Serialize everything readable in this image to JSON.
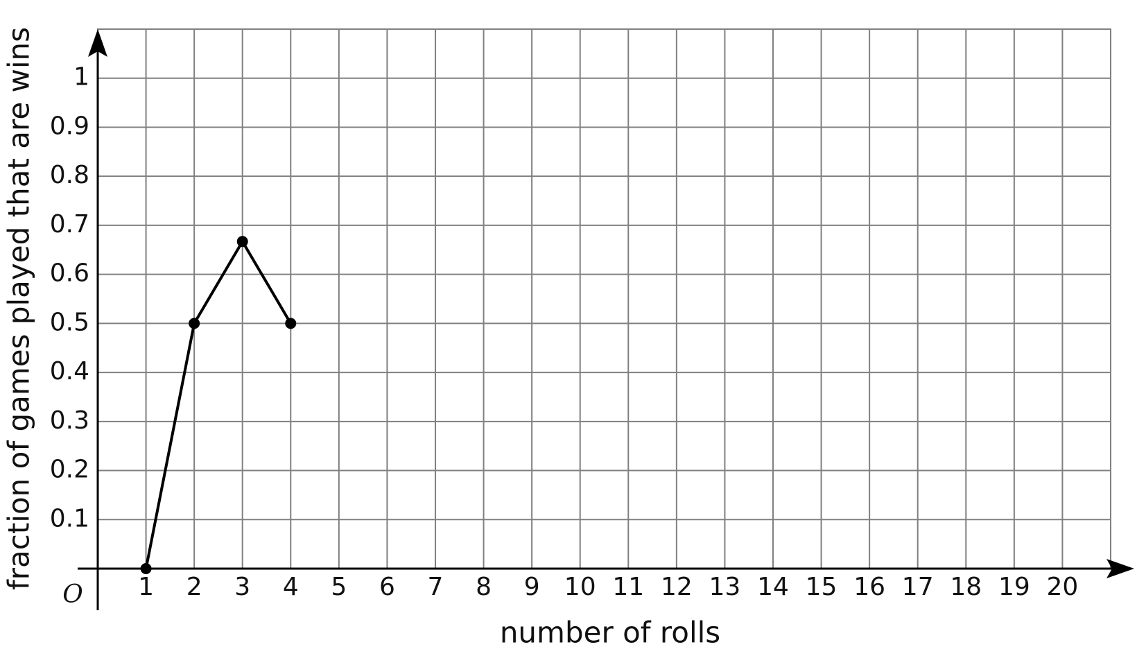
{
  "chart_data": {
    "type": "line",
    "x_label": "number of rolls",
    "y_label": "fraction of games played that are wins",
    "origin_label": "O",
    "x": [
      1,
      2,
      3,
      4
    ],
    "series": [
      {
        "color": "#000000",
        "values": [
          0,
          0.5,
          0.667,
          0.5
        ]
      }
    ],
    "xlim": [
      0,
      21
    ],
    "ylim": [
      0,
      1.1
    ],
    "xticks": [
      1,
      2,
      3,
      4,
      5,
      6,
      7,
      8,
      9,
      10,
      11,
      12,
      13,
      14,
      15,
      16,
      17,
      18,
      19,
      20
    ],
    "yticks": [
      0.1,
      0.2,
      0.3,
      0.4,
      0.5,
      0.6,
      0.7,
      0.8,
      0.9,
      1
    ],
    "grid": true
  }
}
